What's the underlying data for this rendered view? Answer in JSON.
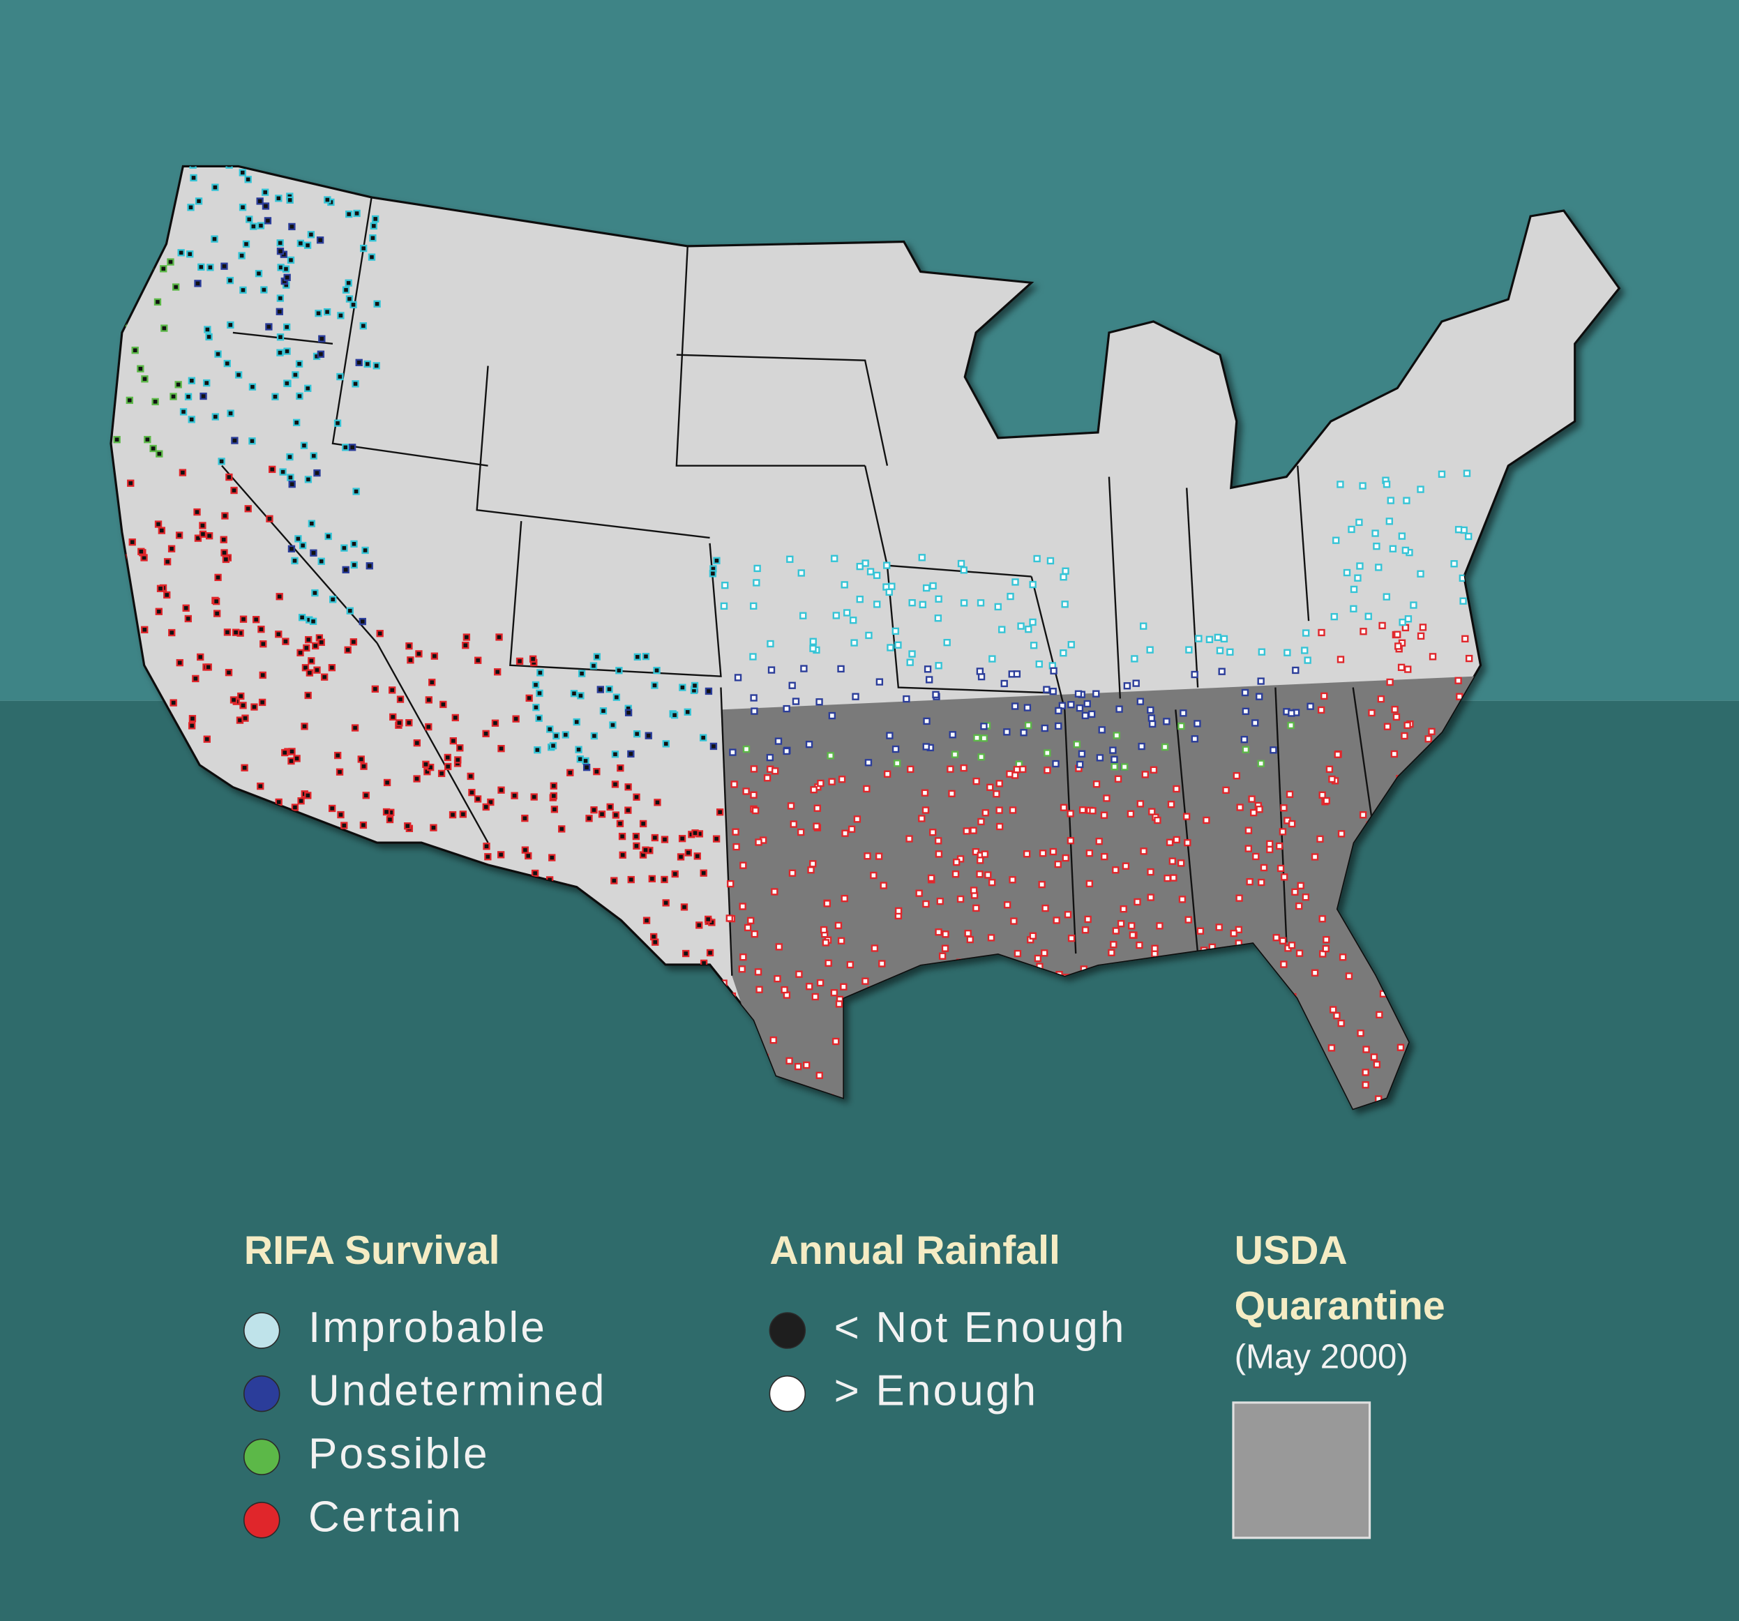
{
  "legends": [
    {
      "title": "RIFA Survival",
      "items": [
        {
          "label": "Improbable",
          "color": "#bfe3ea"
        },
        {
          "label": "Undetermined",
          "color": "#2b3d9a"
        },
        {
          "label": "Possible",
          "color": "#5cb848"
        },
        {
          "label": "Certain",
          "color": "#e0262b"
        }
      ]
    },
    {
      "title": "Annual Rainfall",
      "items": [
        {
          "label": "< Not Enough",
          "color": "#1e1e1e"
        },
        {
          "label": "> Enough",
          "color": "#ffffff"
        }
      ]
    }
  ],
  "quarantine": {
    "title_line1": "USDA",
    "title_line2": "Quarantine",
    "subtitle": "(May 2000)",
    "color": "#999999"
  }
}
